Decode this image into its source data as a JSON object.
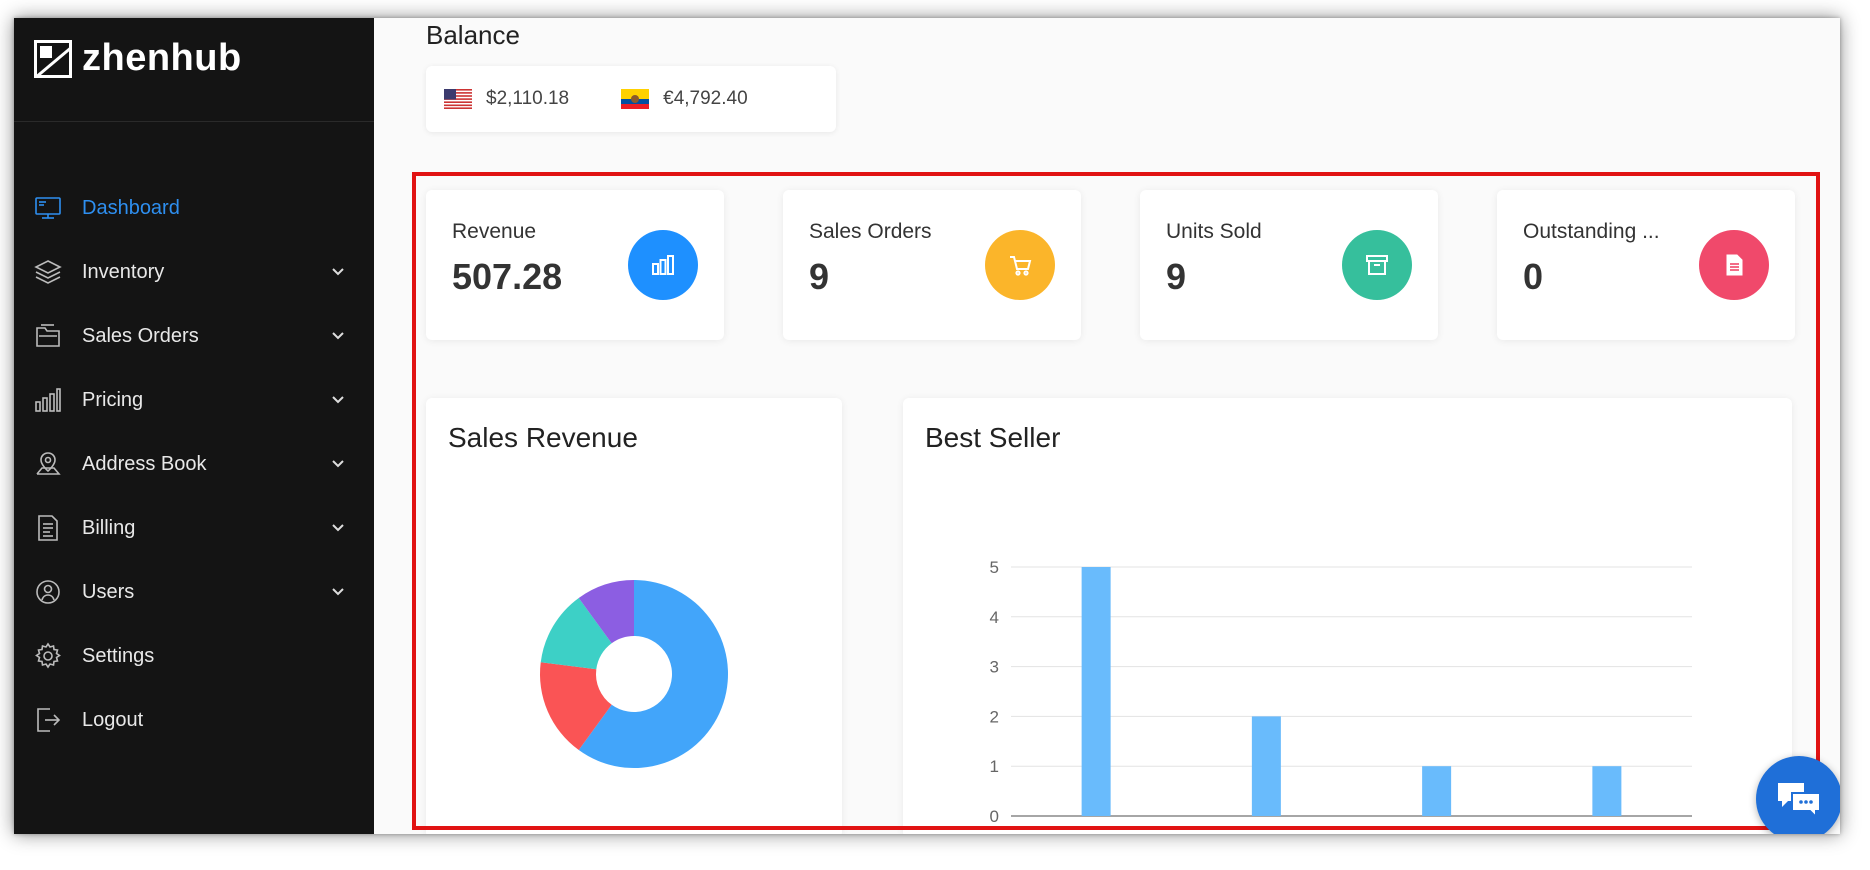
{
  "brand": {
    "name": "zhenhub"
  },
  "sidebar": {
    "items": [
      {
        "label": "Dashboard",
        "icon": "monitor-icon",
        "expandable": false,
        "active": true
      },
      {
        "label": "Inventory",
        "icon": "layers-icon",
        "expandable": true
      },
      {
        "label": "Sales Orders",
        "icon": "folder-icon",
        "expandable": true
      },
      {
        "label": "Pricing",
        "icon": "bar-chart-icon",
        "expandable": true
      },
      {
        "label": "Address Book",
        "icon": "map-pin-icon",
        "expandable": true
      },
      {
        "label": "Billing",
        "icon": "document-list-icon",
        "expandable": true
      },
      {
        "label": "Users",
        "icon": "users-globe-icon",
        "expandable": true
      },
      {
        "label": "Settings",
        "icon": "gear-icon",
        "expandable": false
      },
      {
        "label": "Logout",
        "icon": "logout-icon",
        "expandable": false
      }
    ]
  },
  "balance": {
    "title": "Balance",
    "usd": {
      "amount": "$2,110.18",
      "flag": "us-flag-icon"
    },
    "eur": {
      "amount": "€4,792.40",
      "flag": "ec-flag-icon"
    }
  },
  "stats": [
    {
      "label": "Revenue",
      "value": "507.28",
      "icon": "bar-chart-icon",
      "color": "#1e90ff"
    },
    {
      "label": "Sales Orders",
      "value": "9",
      "icon": "cart-icon",
      "color": "#fbb52a"
    },
    {
      "label": "Units Sold",
      "value": "9",
      "icon": "archive-icon",
      "color": "#36bf9c"
    },
    {
      "label": "Outstanding ...",
      "value": "0",
      "icon": "document-icon",
      "color": "#f0496b"
    }
  ],
  "panels": {
    "sales_revenue": {
      "title": "Sales Revenue"
    },
    "best_seller": {
      "title": "Best Seller"
    }
  },
  "chart_data": [
    {
      "type": "pie",
      "title": "Sales Revenue",
      "donut": true,
      "slices": [
        {
          "value": 60,
          "color": "#42a5fa"
        },
        {
          "value": 17,
          "color": "#fa5455"
        },
        {
          "value": 13,
          "color": "#3dd0c6"
        },
        {
          "value": 10,
          "color": "#8c5ee2"
        }
      ]
    },
    {
      "type": "bar",
      "title": "Best Seller",
      "categories": [
        "",
        "",
        "",
        ""
      ],
      "values": [
        5,
        2,
        1,
        1
      ],
      "ylim": [
        0,
        5
      ],
      "yticks": [
        "0",
        "1",
        "2",
        "3",
        "4",
        "5"
      ],
      "grid": true,
      "color": "#69bbfc"
    }
  ],
  "colors": {
    "accent": "#2e8ff0",
    "sidebar_bg": "#141414",
    "highlight": "#e11313",
    "chat": "#1f6fd8"
  },
  "chat": {
    "icon": "chat-icon"
  }
}
